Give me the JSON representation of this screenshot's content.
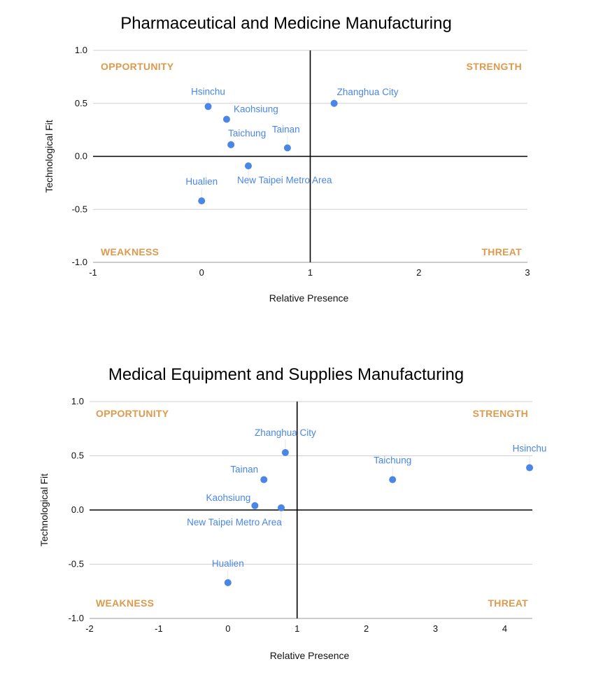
{
  "chart_data": [
    {
      "type": "scatter",
      "title": "Pharmaceutical and Medicine Manufacturing",
      "xlabel": "Relative Presence",
      "ylabel": "Technological Fit",
      "xlim": [
        -1,
        3
      ],
      "ylim": [
        -1.0,
        1.0
      ],
      "x_ticks": [
        -1,
        0,
        1,
        2,
        3
      ],
      "y_ticks": [
        -1.0,
        -0.5,
        0.0,
        0.5,
        1.0
      ],
      "x_tick_labels": [
        "-1",
        "0",
        "1",
        "2",
        "3"
      ],
      "y_tick_labels": [
        "-1.0",
        "-0.5",
        "0.0",
        "0.5",
        "1.0"
      ],
      "divider_x": 1,
      "divider_y": 0,
      "quadrants": [
        "OPPORTUNITY",
        "STRENGTH",
        "WEAKNESS",
        "THREAT"
      ],
      "point_color": "#4a86e8",
      "quadrant_color": "#dd9a4c",
      "points": [
        {
          "label": "Hsinchu",
          "x": 0.06,
          "y": 0.47
        },
        {
          "label": "Kaohsiung",
          "x": 0.23,
          "y": 0.35
        },
        {
          "label": "Zhanghua City",
          "x": 1.22,
          "y": 0.5
        },
        {
          "label": "Taichung",
          "x": 0.27,
          "y": 0.11
        },
        {
          "label": "Tainan",
          "x": 0.79,
          "y": 0.08
        },
        {
          "label": "New Taipei Metro Area",
          "x": 0.43,
          "y": -0.09
        },
        {
          "label": "Hualien",
          "x": 0.0,
          "y": -0.42
        }
      ]
    },
    {
      "type": "scatter",
      "title": "Medical Equipment and Supplies Manufacturing",
      "xlabel": "Relative Presence",
      "ylabel": "Technological Fit",
      "xlim": [
        -2,
        4.4
      ],
      "ylim": [
        -1.0,
        1.0
      ],
      "x_ticks": [
        -2,
        -1,
        0,
        1,
        2,
        3,
        4
      ],
      "y_ticks": [
        -1.0,
        -0.5,
        0.0,
        0.5,
        1.0
      ],
      "x_tick_labels": [
        "-2",
        "-1",
        "0",
        "1",
        "2",
        "3",
        "4"
      ],
      "y_tick_labels": [
        "-1.0",
        "-0.5",
        "0.0",
        "0.5",
        "1.0"
      ],
      "divider_x": 1,
      "divider_y": 0,
      "quadrants": [
        "OPPORTUNITY",
        "STRENGTH",
        "WEAKNESS",
        "THREAT"
      ],
      "point_color": "#4a86e8",
      "quadrant_color": "#dd9a4c",
      "points": [
        {
          "label": "Zhanghua City",
          "x": 0.83,
          "y": 0.53
        },
        {
          "label": "Hsinchu",
          "x": 4.36,
          "y": 0.39
        },
        {
          "label": "Tainan",
          "x": 0.52,
          "y": 0.28
        },
        {
          "label": "Taichung",
          "x": 2.38,
          "y": 0.28
        },
        {
          "label": "Kaohsiung",
          "x": 0.39,
          "y": 0.04
        },
        {
          "label": "New Taipei Metro Area",
          "x": 0.77,
          "y": 0.02
        },
        {
          "label": "Hualien",
          "x": 0.0,
          "y": -0.67
        }
      ]
    }
  ]
}
